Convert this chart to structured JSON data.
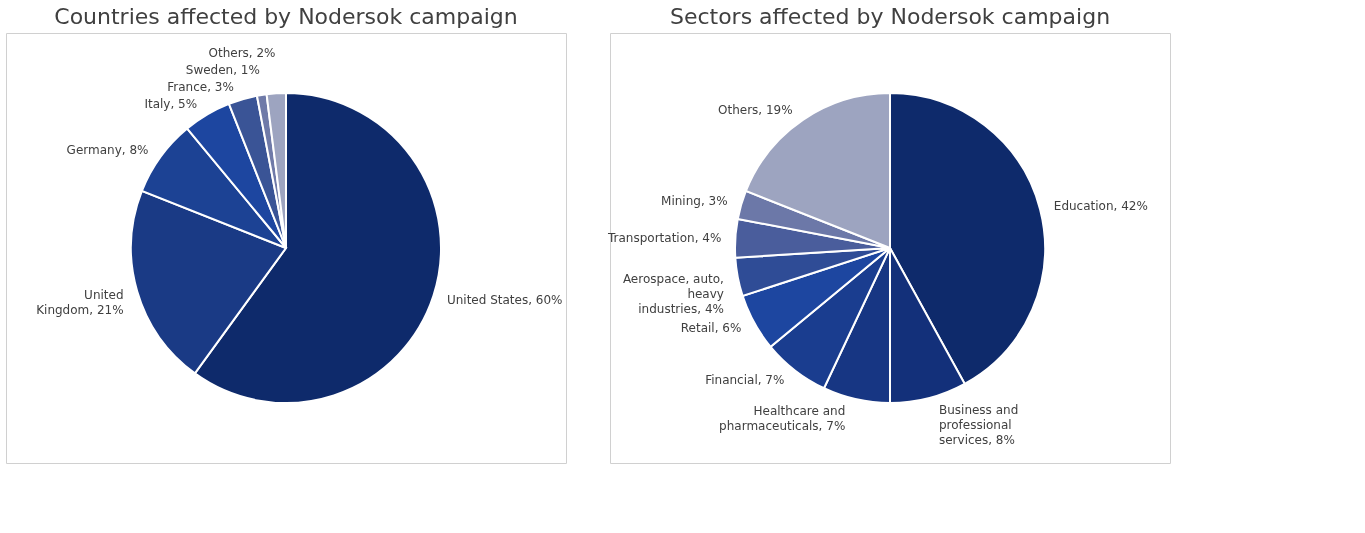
{
  "chart_data": [
    {
      "type": "pie",
      "title": "Countries affected by Nodersok campaign",
      "categories": [
        "United States",
        "United Kingdom",
        "Germany",
        "Italy",
        "France",
        "Sweden",
        "Others"
      ],
      "values": [
        60,
        21,
        8,
        5,
        3,
        1,
        2
      ],
      "value_labels": [
        "60%",
        "21%",
        "8%",
        "5%",
        "3%",
        "1%",
        "2%"
      ],
      "colors": [
        "#0e2a6b",
        "#1a3a85",
        "#1c4294",
        "#1d46a0",
        "#3a5496",
        "#6f7aa8",
        "#9da4c0"
      ],
      "legend": false
    },
    {
      "type": "pie",
      "title": "Sectors affected by Nodersok campaign",
      "categories": [
        "Education",
        "Business and professional services",
        "Healthcare and pharmaceuticals",
        "Financial",
        "Retail",
        "Aerospace, auto, heavy industries",
        "Transportation",
        "Mining",
        "Others"
      ],
      "values": [
        42,
        8,
        7,
        7,
        6,
        4,
        4,
        3,
        19
      ],
      "value_labels": [
        "42%",
        "8%",
        "7%",
        "7%",
        "6%",
        "4%",
        "4%",
        "3%",
        "19%"
      ],
      "colors": [
        "#0e2a6b",
        "#13307a",
        "#173683",
        "#1a3d8f",
        "#1d46a0",
        "#2f4c96",
        "#4a5d9c",
        "#6c78a8",
        "#9da4c0"
      ],
      "legend": false
    }
  ]
}
